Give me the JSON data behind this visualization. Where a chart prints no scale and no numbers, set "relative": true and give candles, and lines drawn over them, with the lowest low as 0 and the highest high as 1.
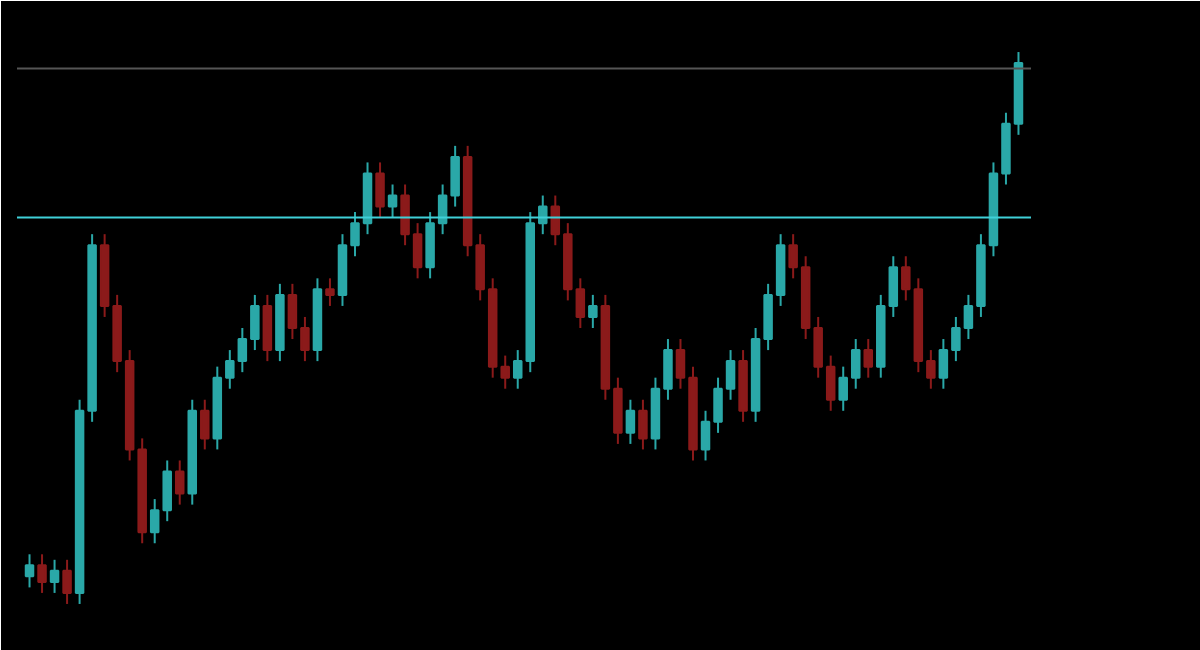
{
  "chart_data": {
    "type": "candlestick",
    "relative": true,
    "grid": false,
    "categories": [
      null,
      null,
      null,
      null,
      null,
      null,
      null,
      null,
      null,
      null,
      null,
      null,
      null,
      null,
      null,
      null,
      null,
      null,
      null,
      null,
      null,
      null,
      null,
      null,
      null,
      null,
      null,
      null,
      null,
      null,
      null,
      null,
      null,
      null,
      null,
      null,
      null,
      null,
      null,
      null,
      null,
      null,
      null,
      null,
      null,
      null,
      null,
      null,
      null,
      null,
      null,
      null,
      null,
      null,
      null,
      null,
      null,
      null,
      null,
      null,
      null,
      null,
      null,
      null,
      null,
      null,
      null,
      null,
      null,
      null,
      null,
      null,
      null,
      null,
      null,
      null,
      null,
      null,
      null,
      null
    ],
    "ohlc": [
      [
        0.05,
        0.09,
        0.03,
        0.07
      ],
      [
        0.07,
        0.09,
        0.02,
        0.04
      ],
      [
        0.04,
        0.08,
        0.02,
        0.06
      ],
      [
        0.06,
        0.08,
        0.0,
        0.02
      ],
      [
        0.02,
        0.37,
        0.0,
        0.35
      ],
      [
        0.35,
        0.67,
        0.33,
        0.65
      ],
      [
        0.65,
        0.67,
        0.52,
        0.54
      ],
      [
        0.54,
        0.56,
        0.42,
        0.44
      ],
      [
        0.44,
        0.46,
        0.26,
        0.28
      ],
      [
        0.28,
        0.3,
        0.11,
        0.13
      ],
      [
        0.13,
        0.19,
        0.11,
        0.17
      ],
      [
        0.17,
        0.26,
        0.15,
        0.24
      ],
      [
        0.24,
        0.26,
        0.18,
        0.2
      ],
      [
        0.2,
        0.37,
        0.18,
        0.35
      ],
      [
        0.35,
        0.37,
        0.28,
        0.3
      ],
      [
        0.3,
        0.43,
        0.28,
        0.41
      ],
      [
        0.41,
        0.46,
        0.39,
        0.44
      ],
      [
        0.44,
        0.5,
        0.42,
        0.48
      ],
      [
        0.48,
        0.56,
        0.46,
        0.54
      ],
      [
        0.54,
        0.56,
        0.44,
        0.46
      ],
      [
        0.46,
        0.58,
        0.44,
        0.56
      ],
      [
        0.56,
        0.58,
        0.48,
        0.5
      ],
      [
        0.5,
        0.52,
        0.44,
        0.46
      ],
      [
        0.46,
        0.59,
        0.44,
        0.57
      ],
      [
        0.57,
        0.59,
        0.54,
        0.56
      ],
      [
        0.56,
        0.67,
        0.54,
        0.65
      ],
      [
        0.65,
        0.71,
        0.63,
        0.69
      ],
      [
        0.69,
        0.8,
        0.67,
        0.78
      ],
      [
        0.78,
        0.8,
        0.7,
        0.72
      ],
      [
        0.72,
        0.76,
        0.7,
        0.74
      ],
      [
        0.74,
        0.76,
        0.65,
        0.67
      ],
      [
        0.67,
        0.69,
        0.59,
        0.61
      ],
      [
        0.61,
        0.71,
        0.59,
        0.69
      ],
      [
        0.69,
        0.76,
        0.67,
        0.74
      ],
      [
        0.74,
        0.83,
        0.72,
        0.81
      ],
      [
        0.81,
        0.83,
        0.63,
        0.65
      ],
      [
        0.65,
        0.67,
        0.55,
        0.57
      ],
      [
        0.57,
        0.59,
        0.41,
        0.43
      ],
      [
        0.43,
        0.45,
        0.39,
        0.41
      ],
      [
        0.41,
        0.46,
        0.39,
        0.44
      ],
      [
        0.44,
        0.71,
        0.42,
        0.69
      ],
      [
        0.69,
        0.74,
        0.67,
        0.72
      ],
      [
        0.72,
        0.74,
        0.65,
        0.67
      ],
      [
        0.67,
        0.69,
        0.55,
        0.57
      ],
      [
        0.57,
        0.59,
        0.5,
        0.52
      ],
      [
        0.52,
        0.56,
        0.5,
        0.54
      ],
      [
        0.54,
        0.56,
        0.37,
        0.39
      ],
      [
        0.39,
        0.41,
        0.29,
        0.31
      ],
      [
        0.31,
        0.37,
        0.29,
        0.35
      ],
      [
        0.35,
        0.37,
        0.28,
        0.3
      ],
      [
        0.3,
        0.41,
        0.28,
        0.39
      ],
      [
        0.39,
        0.48,
        0.37,
        0.46
      ],
      [
        0.46,
        0.48,
        0.39,
        0.41
      ],
      [
        0.41,
        0.43,
        0.26,
        0.28
      ],
      [
        0.28,
        0.35,
        0.26,
        0.33
      ],
      [
        0.33,
        0.41,
        0.31,
        0.39
      ],
      [
        0.39,
        0.46,
        0.37,
        0.44
      ],
      [
        0.44,
        0.46,
        0.33,
        0.35
      ],
      [
        0.35,
        0.5,
        0.33,
        0.48
      ],
      [
        0.48,
        0.58,
        0.46,
        0.56
      ],
      [
        0.56,
        0.67,
        0.54,
        0.65
      ],
      [
        0.65,
        0.67,
        0.59,
        0.61
      ],
      [
        0.61,
        0.63,
        0.48,
        0.5
      ],
      [
        0.5,
        0.52,
        0.41,
        0.43
      ],
      [
        0.43,
        0.45,
        0.35,
        0.37
      ],
      [
        0.37,
        0.43,
        0.35,
        0.41
      ],
      [
        0.41,
        0.48,
        0.39,
        0.46
      ],
      [
        0.46,
        0.48,
        0.41,
        0.43
      ],
      [
        0.43,
        0.56,
        0.41,
        0.54
      ],
      [
        0.54,
        0.63,
        0.52,
        0.61
      ],
      [
        0.61,
        0.63,
        0.55,
        0.57
      ],
      [
        0.57,
        0.59,
        0.42,
        0.44
      ],
      [
        0.44,
        0.46,
        0.39,
        0.41
      ],
      [
        0.41,
        0.48,
        0.39,
        0.46
      ],
      [
        0.46,
        0.52,
        0.44,
        0.5
      ],
      [
        0.5,
        0.56,
        0.48,
        0.54
      ],
      [
        0.54,
        0.67,
        0.52,
        0.65
      ],
      [
        0.65,
        0.8,
        0.63,
        0.78
      ],
      [
        0.78,
        0.89,
        0.76,
        0.87
      ],
      [
        0.87,
        1.0,
        0.85,
        0.98
      ]
    ],
    "colors": [
      "#2aa8a8",
      "#8b1a1a",
      "#2aa8a8",
      "#8b1a1a",
      "#2aa8a8",
      "#2aa8a8",
      "#8b1a1a",
      "#8b1a1a",
      "#8b1a1a",
      "#8b1a1a",
      "#2aa8a8",
      "#2aa8a8",
      "#8b1a1a",
      "#2aa8a8",
      "#8b1a1a",
      "#2aa8a8",
      "#2aa8a8",
      "#2aa8a8",
      "#2aa8a8",
      "#8b1a1a",
      "#2aa8a8",
      "#8b1a1a",
      "#8b1a1a",
      "#2aa8a8",
      "#8b1a1a",
      "#2aa8a8",
      "#2aa8a8",
      "#2aa8a8",
      "#8b1a1a",
      "#2aa8a8",
      "#8b1a1a",
      "#8b1a1a",
      "#2aa8a8",
      "#2aa8a8",
      "#2aa8a8",
      "#8b1a1a",
      "#8b1a1a",
      "#8b1a1a",
      "#8b1a1a",
      "#2aa8a8",
      "#2aa8a8",
      "#2aa8a8",
      "#8b1a1a",
      "#8b1a1a",
      "#8b1a1a",
      "#2aa8a8",
      "#8b1a1a",
      "#8b1a1a",
      "#2aa8a8",
      "#8b1a1a",
      "#2aa8a8",
      "#2aa8a8",
      "#8b1a1a",
      "#8b1a1a",
      "#2aa8a8",
      "#2aa8a8",
      "#2aa8a8",
      "#8b1a1a",
      "#2aa8a8",
      "#2aa8a8",
      "#2aa8a8",
      "#8b1a1a",
      "#8b1a1a",
      "#8b1a1a",
      "#8b1a1a",
      "#2aa8a8",
      "#2aa8a8",
      "#8b1a1a",
      "#2aa8a8",
      "#2aa8a8",
      "#8b1a1a",
      "#8b1a1a",
      "#8b1a1a",
      "#2aa8a8",
      "#2aa8a8",
      "#2aa8a8",
      "#2aa8a8",
      "#2aa8a8",
      "#2aa8a8",
      "#2aa8a8"
    ],
    "ref_lines": [
      {
        "axis": "y",
        "value": 0.97,
        "color": "#555555"
      },
      {
        "axis": "y",
        "value": 0.7,
        "color": "#3fd0d8"
      }
    ]
  }
}
